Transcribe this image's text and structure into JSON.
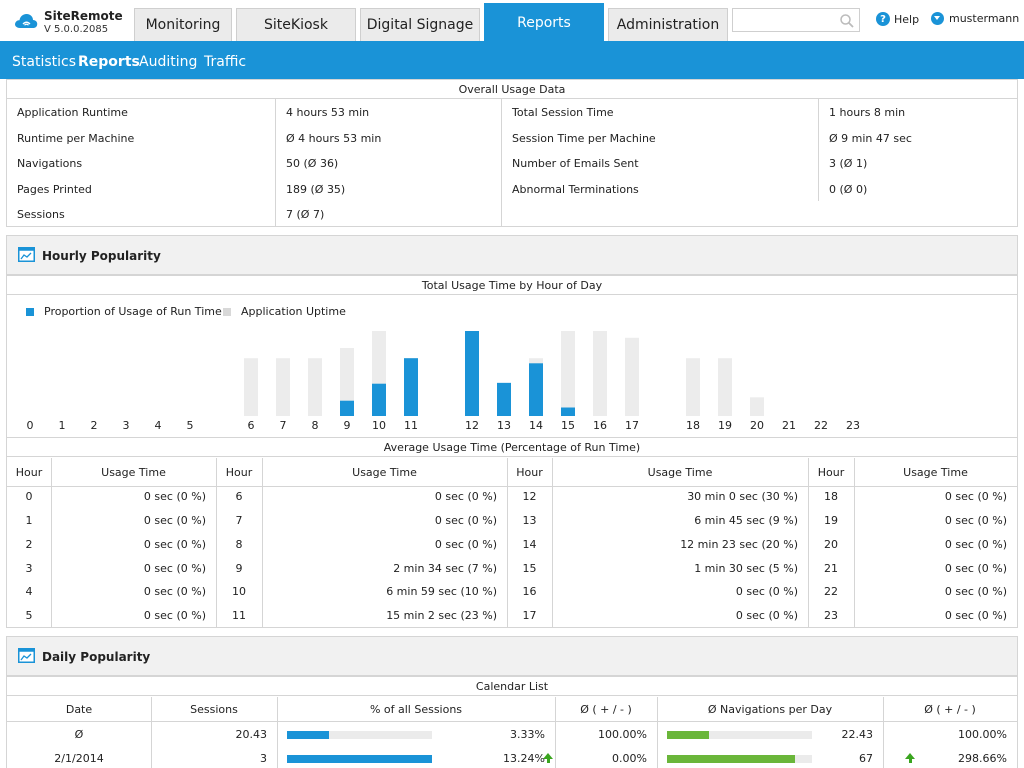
{
  "app": {
    "name": "SiteRemote",
    "version": "V 5.0.0.2085"
  },
  "tabs": [
    {
      "label": "Monitoring",
      "active": false
    },
    {
      "label": "SiteKiosk",
      "active": false
    },
    {
      "label": "Digital Signage",
      "active": false
    },
    {
      "label": "Reports",
      "active": true
    },
    {
      "label": "Administration",
      "active": false
    }
  ],
  "search": {
    "placeholder": "",
    "value": ""
  },
  "help_label": "Help",
  "user_name": "mustermann",
  "subnav": [
    {
      "label": "Statistics",
      "active": false
    },
    {
      "label": "Reports",
      "active": true
    },
    {
      "label": "Auditing",
      "active": false
    },
    {
      "label": "Traffic",
      "active": false
    }
  ],
  "overall": {
    "caption": "Overall Usage Data",
    "left": [
      {
        "label": "Application Runtime",
        "value": "4 hours 53 min"
      },
      {
        "label": "Runtime per Machine",
        "value": "Ø 4 hours 53 min"
      },
      {
        "label": "Navigations",
        "value": "50 (Ø 36)"
      },
      {
        "label": "Pages Printed",
        "value": "189 (Ø 35)"
      },
      {
        "label": "Sessions",
        "value": "7 (Ø 7)"
      }
    ],
    "right": [
      {
        "label": "Total Session Time",
        "value": "1 hours 8 min"
      },
      {
        "label": "Session Time per Machine",
        "value": "Ø 9 min 47 sec"
      },
      {
        "label": "Number of Emails Sent",
        "value": "3 (Ø 1)"
      },
      {
        "label": "Abnormal Terminations",
        "value": "0 (Ø 0)"
      }
    ]
  },
  "hourly": {
    "title": "Hourly Popularity",
    "chart_caption": "Total Usage Time by Hour of Day",
    "table_caption": "Average Usage Time (Percentage of Run Time)",
    "hour_header": "Hour",
    "usage_header": "Usage Time",
    "rows": [
      {
        "hour": "0",
        "usage": "0 sec (0 %)"
      },
      {
        "hour": "1",
        "usage": "0 sec (0 %)"
      },
      {
        "hour": "2",
        "usage": "0 sec (0 %)"
      },
      {
        "hour": "3",
        "usage": "0 sec (0 %)"
      },
      {
        "hour": "4",
        "usage": "0 sec (0 %)"
      },
      {
        "hour": "5",
        "usage": "0 sec (0 %)"
      },
      {
        "hour": "6",
        "usage": "0 sec (0 %)"
      },
      {
        "hour": "7",
        "usage": "0 sec (0 %)"
      },
      {
        "hour": "8",
        "usage": "0 sec (0 %)"
      },
      {
        "hour": "9",
        "usage": "2 min 34 sec (7 %)"
      },
      {
        "hour": "10",
        "usage": "6 min 59 sec (10 %)"
      },
      {
        "hour": "11",
        "usage": "15 min 2 sec (23 %)"
      },
      {
        "hour": "12",
        "usage": "30 min 0 sec (30 %)"
      },
      {
        "hour": "13",
        "usage": "6 min 45 sec (9 %)"
      },
      {
        "hour": "14",
        "usage": "12 min 23 sec (20 %)"
      },
      {
        "hour": "15",
        "usage": "1 min 30 sec (5 %)"
      },
      {
        "hour": "16",
        "usage": "0 sec (0 %)"
      },
      {
        "hour": "17",
        "usage": "0 sec (0 %)"
      },
      {
        "hour": "18",
        "usage": "0 sec (0 %)"
      },
      {
        "hour": "19",
        "usage": "0 sec (0 %)"
      },
      {
        "hour": "20",
        "usage": "0 sec (0 %)"
      },
      {
        "hour": "21",
        "usage": "0 sec (0 %)"
      },
      {
        "hour": "22",
        "usage": "0 sec (0 %)"
      },
      {
        "hour": "23",
        "usage": "0 sec (0 %)"
      }
    ]
  },
  "chart_data": {
    "type": "bar",
    "title": "Total Usage Time by Hour of Day",
    "categories": [
      "0",
      "1",
      "2",
      "3",
      "4",
      "5",
      "6",
      "7",
      "8",
      "9",
      "10",
      "11",
      "12",
      "13",
      "14",
      "15",
      "16",
      "17",
      "18",
      "19",
      "20",
      "21",
      "22",
      "23"
    ],
    "series": [
      {
        "name": "Proportion of Usage of Run Time",
        "color": "#1a93d7",
        "values": [
          0,
          0,
          0,
          0,
          0,
          0,
          0,
          0,
          0,
          0.18,
          0.38,
          0.68,
          1.0,
          0.39,
          0.62,
          0.1,
          0,
          0,
          0,
          0,
          0,
          0,
          0,
          0
        ]
      },
      {
        "name": "Application Uptime",
        "color": "#ececec",
        "values": [
          0,
          0,
          0,
          0,
          0,
          0,
          0.68,
          0.68,
          0.68,
          0.8,
          1.0,
          0.68,
          0.72,
          0.08,
          0.68,
          1.0,
          1.0,
          0.92,
          0.68,
          0.68,
          0.22,
          0,
          0,
          0
        ]
      }
    ],
    "ylim": [
      0,
      1
    ],
    "grid": false,
    "legend": "top-left"
  },
  "daily": {
    "title": "Daily Popularity",
    "caption": "Calendar List",
    "headers": [
      "Date",
      "Sessions",
      "% of all Sessions",
      "Ø ( + / - )",
      "Ø Navigations per Day",
      "Ø ( + / - )"
    ],
    "rows": [
      {
        "date": "Ø",
        "sessions": "20.43",
        "pct": "3.33%",
        "pct_fill": 0.29,
        "diff1": "100.00%",
        "nav": "22.43",
        "nav_fill": 0.29,
        "diff2": "100.00%",
        "up1": false,
        "up2": false
      },
      {
        "date": "2/1/2014",
        "sessions": "3",
        "pct": "13.24%",
        "pct_fill": 1.0,
        "diff1": "0.00%",
        "nav": "67",
        "nav_fill": 0.88,
        "diff2": "298.66%",
        "up1": true,
        "up2": true
      }
    ]
  }
}
